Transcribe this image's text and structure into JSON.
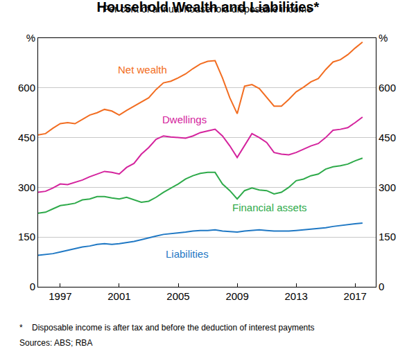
{
  "chart_data": {
    "type": "line",
    "title": "Household Wealth and Liabilities*",
    "subtitle": "Per cent of annual household disposable income",
    "footnote": "*    Disposable income is after tax and before the deduction of interest payments",
    "source": "Sources: ABS; RBA",
    "x": [
      1995.5,
      1996,
      1996.5,
      1997,
      1997.5,
      1998,
      1998.5,
      1999,
      1999.5,
      2000,
      2000.5,
      2001,
      2001.5,
      2002,
      2002.5,
      2003,
      2003.5,
      2004,
      2004.5,
      2005,
      2005.5,
      2006,
      2006.5,
      2007,
      2007.5,
      2008,
      2008.5,
      2009,
      2009.5,
      2010,
      2010.5,
      2011,
      2011.5,
      2012,
      2012.5,
      2013,
      2013.5,
      2014,
      2014.5,
      2015,
      2015.5,
      2016,
      2016.5,
      2017,
      2017.5
    ],
    "series": [
      {
        "name": "Net wealth",
        "color": "#f26d21",
        "values": [
          458,
          462,
          478,
          492,
          495,
          492,
          505,
          518,
          525,
          535,
          530,
          518,
          532,
          545,
          558,
          570,
          595,
          615,
          620,
          630,
          642,
          658,
          672,
          680,
          682,
          630,
          570,
          522,
          605,
          610,
          598,
          572,
          545,
          545,
          565,
          588,
          602,
          618,
          628,
          655,
          678,
          685,
          700,
          720,
          738
        ]
      },
      {
        "name": "Dwellings",
        "color": "#d4239d",
        "values": [
          285,
          288,
          298,
          310,
          308,
          315,
          322,
          332,
          340,
          348,
          345,
          340,
          360,
          372,
          400,
          420,
          445,
          455,
          452,
          450,
          448,
          455,
          465,
          470,
          475,
          455,
          425,
          390,
          425,
          462,
          450,
          435,
          405,
          400,
          398,
          405,
          415,
          425,
          432,
          450,
          472,
          475,
          480,
          495,
          512
        ]
      },
      {
        "name": "Financial assets",
        "color": "#2eaa4a",
        "values": [
          222,
          225,
          235,
          245,
          248,
          252,
          262,
          265,
          272,
          272,
          268,
          265,
          270,
          262,
          255,
          258,
          270,
          285,
          298,
          310,
          325,
          335,
          342,
          345,
          345,
          310,
          290,
          265,
          290,
          298,
          292,
          290,
          280,
          285,
          300,
          320,
          325,
          335,
          340,
          355,
          362,
          365,
          370,
          380,
          388
        ]
      },
      {
        "name": "Liabilities",
        "color": "#1f78c4",
        "values": [
          95,
          97,
          100,
          105,
          110,
          115,
          120,
          123,
          128,
          130,
          128,
          130,
          133,
          137,
          142,
          148,
          153,
          158,
          160,
          162,
          165,
          168,
          170,
          170,
          172,
          168,
          167,
          165,
          168,
          170,
          172,
          170,
          168,
          168,
          168,
          170,
          172,
          173,
          175,
          178,
          182,
          185,
          187,
          190,
          192
        ]
      }
    ],
    "xlim": [
      1995.5,
      2018.4
    ],
    "xticks": [
      1997,
      2001,
      2005,
      2009,
      2013,
      2017
    ],
    "ylim": [
      0,
      750
    ],
    "yticks": [
      0,
      150,
      300,
      450,
      600,
      {
        "value": 750,
        "label": "%"
      }
    ],
    "y2lim": [
      0,
      750
    ],
    "y2ticks": [
      0,
      150,
      300,
      450,
      600,
      {
        "value": 750,
        "label": "%"
      }
    ],
    "grid": true
  }
}
